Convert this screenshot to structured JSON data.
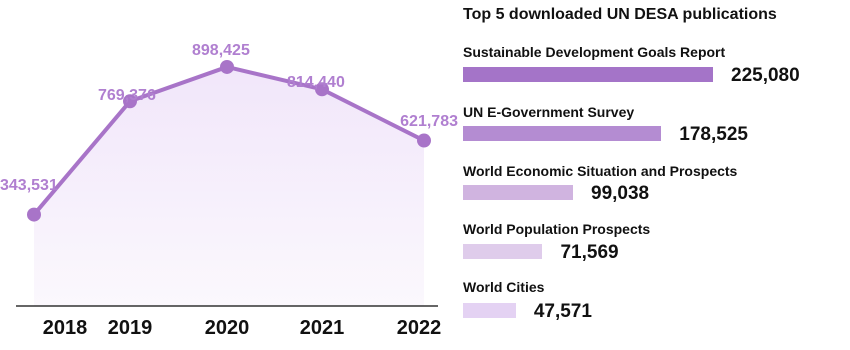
{
  "chart_data": [
    {
      "type": "area",
      "title": "",
      "xlabel": "",
      "ylabel": "",
      "x": [
        "2018",
        "2019",
        "2020",
        "2021",
        "2022"
      ],
      "values": [
        343531,
        769376,
        898425,
        814440,
        621783
      ],
      "value_labels": [
        "343,531",
        "769,376",
        "898,425",
        "814,440",
        "621,783"
      ],
      "ylim": [
        0,
        1150000
      ],
      "grid": false,
      "colors": {
        "line": "#a874c8",
        "marker": "#a874c8",
        "label": "#b07fd0",
        "fill_top": "#f1e6fa",
        "fill_bottom": "#fbf8fd",
        "axis": "#333333"
      }
    },
    {
      "type": "bar",
      "orientation": "horizontal",
      "title": "Top 5 downloaded UN DESA publications",
      "categories": [
        "Sustainable Development Goals Report",
        "UN E-Government Survey",
        "World Economic Situation and Prospects",
        "World Population Prospects",
        "World Cities"
      ],
      "values": [
        225080,
        178525,
        99038,
        71569,
        47571
      ],
      "value_labels": [
        "225,080",
        "178,525",
        "99,038",
        "71,569",
        "47,571"
      ],
      "colors": [
        "#a474c8",
        "#b48cd2",
        "#d0b4e0",
        "#dfcceb",
        "#e4d2f3"
      ]
    }
  ]
}
